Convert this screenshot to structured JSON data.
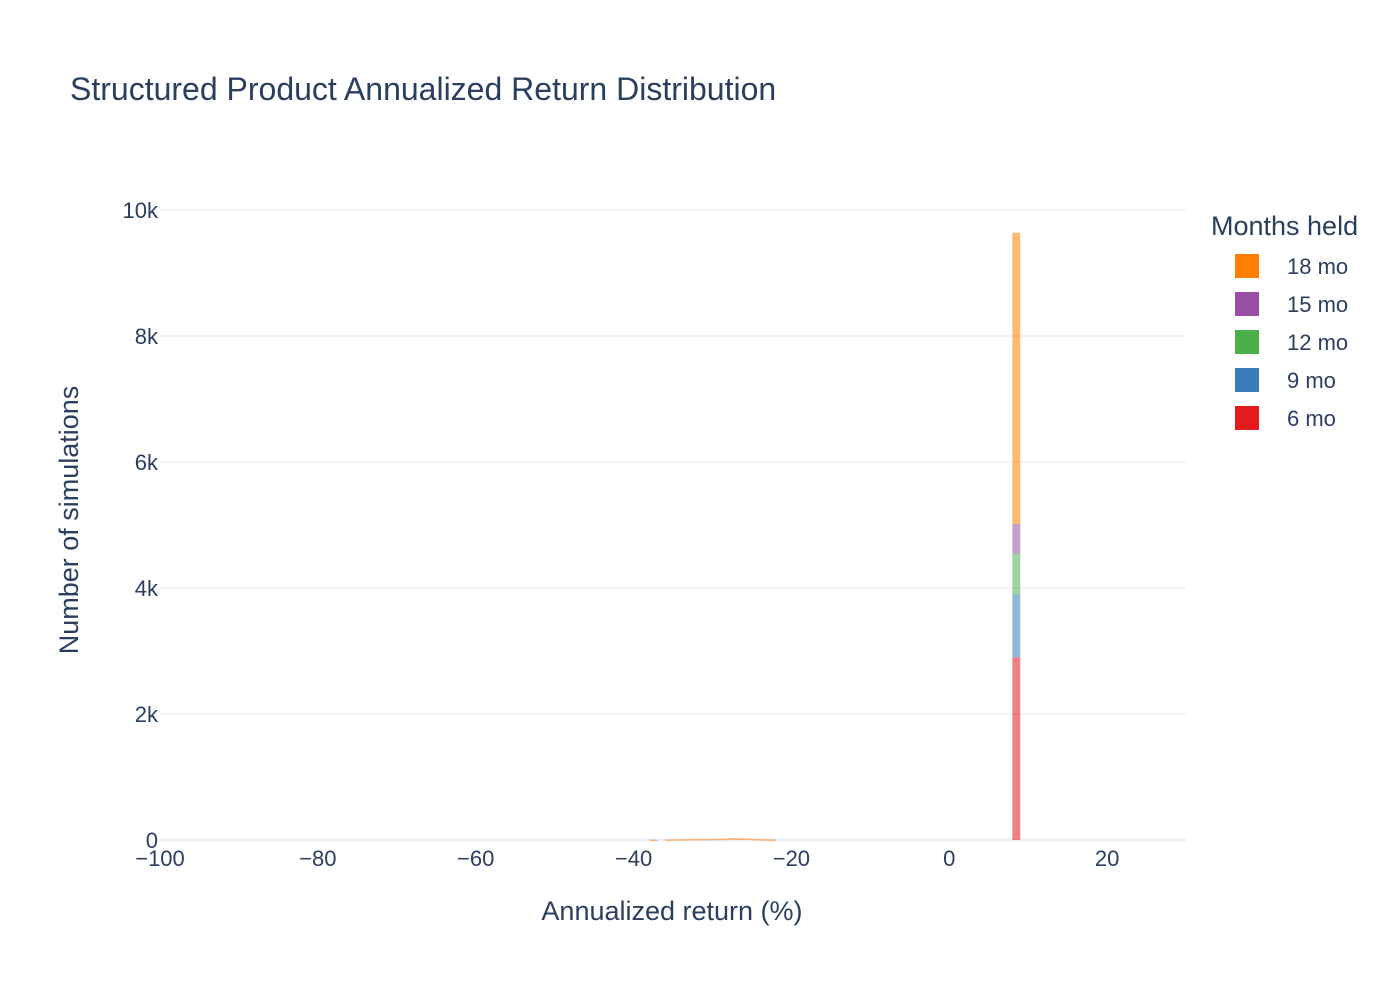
{
  "chart_data": {
    "type": "bar",
    "mode": "stacked-histogram",
    "title": "Structured Product Annualized Return Distribution",
    "xlabel": "Annualized return (%)",
    "ylabel": "Number of simulations",
    "xlim": [
      -100,
      30
    ],
    "ylim": [
      0,
      10000
    ],
    "x_ticks": [
      -100,
      -80,
      -60,
      -40,
      -20,
      0,
      20
    ],
    "x_tick_labels": [
      "−100",
      "−80",
      "−60",
      "−40",
      "−20",
      "0",
      "20"
    ],
    "y_ticks": [
      0,
      2000,
      4000,
      6000,
      8000,
      10000
    ],
    "y_tick_labels": [
      "0",
      "2k",
      "4k",
      "6k",
      "8k",
      "10k"
    ],
    "grid": true,
    "legend_title": "Months held",
    "legend_position": "right",
    "bin_width": 1,
    "series": [
      {
        "name": "6 mo",
        "color": "#e41a1c",
        "bins": [
          {
            "x0": 8,
            "x1": 9,
            "count": 2900
          }
        ]
      },
      {
        "name": "9 mo",
        "color": "#377eb8",
        "bins": [
          {
            "x0": 8,
            "x1": 9,
            "count": 1000
          }
        ]
      },
      {
        "name": "12 mo",
        "color": "#4daf4a",
        "bins": [
          {
            "x0": 8,
            "x1": 9,
            "count": 650
          }
        ]
      },
      {
        "name": "15 mo",
        "color": "#984ea3",
        "bins": [
          {
            "x0": 8,
            "x1": 9,
            "count": 470
          }
        ]
      },
      {
        "name": "18 mo",
        "color": "#ff7f00",
        "bins": [
          {
            "x0": -38,
            "x1": -37,
            "count": 8
          },
          {
            "x0": -36,
            "x1": -35,
            "count": 10
          },
          {
            "x0": -35,
            "x1": -34,
            "count": 12
          },
          {
            "x0": -34,
            "x1": -33,
            "count": 14
          },
          {
            "x0": -33,
            "x1": -32,
            "count": 16
          },
          {
            "x0": -32,
            "x1": -31,
            "count": 18
          },
          {
            "x0": -31,
            "x1": -30,
            "count": 18
          },
          {
            "x0": -30,
            "x1": -29,
            "count": 20
          },
          {
            "x0": -29,
            "x1": -28,
            "count": 22
          },
          {
            "x0": -28,
            "x1": -27,
            "count": 30
          },
          {
            "x0": -27,
            "x1": -26,
            "count": 28
          },
          {
            "x0": -26,
            "x1": -25,
            "count": 24
          },
          {
            "x0": -25,
            "x1": -24,
            "count": 18
          },
          {
            "x0": -24,
            "x1": -23,
            "count": 14
          },
          {
            "x0": -23,
            "x1": -22,
            "count": 10
          },
          {
            "x0": 8,
            "x1": 9,
            "count": 4620
          }
        ]
      }
    ]
  }
}
